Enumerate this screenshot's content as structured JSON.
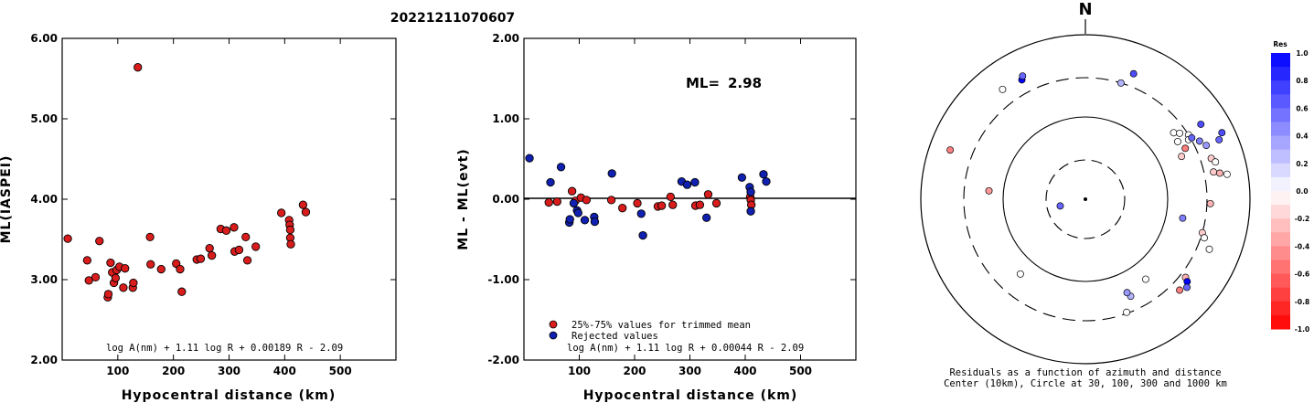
{
  "chart_data": [
    {
      "type": "scatter",
      "title": "20221211070607",
      "xlabel": "Hypocentral distance (km)",
      "ylabel": "ML(IASPEI)",
      "xlim": [
        0,
        600
      ],
      "ylim": [
        2.0,
        6.0
      ],
      "xticks": [
        "100",
        "200",
        "300",
        "400",
        "500"
      ],
      "yticks": [
        "2.00",
        "3.00",
        "4.00",
        "5.00",
        "6.00"
      ],
      "formula": "log A(nm) + 1.11 log R + 0.00189 R - 2.09",
      "marker_color": "#d91c1c",
      "points": [
        [
          10,
          3.51
        ],
        [
          45,
          3.24
        ],
        [
          48,
          2.99
        ],
        [
          60,
          3.03
        ],
        [
          67,
          3.48
        ],
        [
          82,
          2.78
        ],
        [
          83,
          2.82
        ],
        [
          87,
          3.21
        ],
        [
          90,
          3.09
        ],
        [
          93,
          2.96
        ],
        [
          96,
          3.02
        ],
        [
          98,
          3.12
        ],
        [
          103,
          3.16
        ],
        [
          110,
          2.9
        ],
        [
          113,
          3.14
        ],
        [
          127,
          2.9
        ],
        [
          128,
          2.96
        ],
        [
          136,
          5.64
        ],
        [
          158,
          3.53
        ],
        [
          159,
          3.19
        ],
        [
          178,
          3.13
        ],
        [
          205,
          3.2
        ],
        [
          212,
          3.13
        ],
        [
          215,
          2.85
        ],
        [
          242,
          3.25
        ],
        [
          249,
          3.26
        ],
        [
          265,
          3.39
        ],
        [
          269,
          3.3
        ],
        [
          285,
          3.63
        ],
        [
          295,
          3.61
        ],
        [
          309,
          3.65
        ],
        [
          310,
          3.35
        ],
        [
          318,
          3.37
        ],
        [
          330,
          3.53
        ],
        [
          333,
          3.24
        ],
        [
          348,
          3.41
        ],
        [
          394,
          3.83
        ],
        [
          408,
          3.74
        ],
        [
          409,
          3.68
        ],
        [
          410,
          3.62
        ],
        [
          410,
          3.52
        ],
        [
          411,
          3.44
        ],
        [
          433,
          3.93
        ],
        [
          438,
          3.84
        ]
      ]
    },
    {
      "type": "scatter",
      "xlabel": "Hypocentral distance (km)",
      "ylabel": "ML - ML(evt)",
      "xlim": [
        0,
        600
      ],
      "ylim": [
        -2.0,
        2.0
      ],
      "xticks": [
        "100",
        "200",
        "300",
        "400",
        "500"
      ],
      "yticks": [
        "-2.00",
        "-1.00",
        "0.00",
        "1.00",
        "2.00"
      ],
      "ml_label": "ML=",
      "ml_value": "2.98",
      "legend": [
        "25%-75% values for trimmed mean",
        "Rejected values"
      ],
      "formula": "log A(nm) + 1.11 log R + 0.00044 R - 2.09",
      "series": [
        {
          "name": "25%-75% values for trimmed mean",
          "color": "#d91c1c",
          "points": [
            [
              45,
              -0.04
            ],
            [
              60,
              -0.03
            ],
            [
              87,
              0.1
            ],
            [
              93,
              -0.02
            ],
            [
              103,
              0.02
            ],
            [
              113,
              -0.01
            ],
            [
              158,
              -0.01
            ],
            [
              178,
              -0.11
            ],
            [
              205,
              -0.05
            ],
            [
              242,
              -0.09
            ],
            [
              249,
              -0.08
            ],
            [
              265,
              0.03
            ],
            [
              269,
              -0.07
            ],
            [
              310,
              -0.08
            ],
            [
              318,
              -0.07
            ],
            [
              333,
              0.06
            ],
            [
              348,
              -0.05
            ],
            [
              409,
              0.03
            ],
            [
              410,
              -0.01
            ],
            [
              411,
              -0.07
            ]
          ]
        },
        {
          "name": "Rejected values",
          "color": "#1020b0",
          "points": [
            [
              10,
              0.51
            ],
            [
              48,
              0.21
            ],
            [
              67,
              0.4
            ],
            [
              82,
              -0.29
            ],
            [
              83,
              -0.25
            ],
            [
              90,
              -0.05
            ],
            [
              96,
              -0.14
            ],
            [
              98,
              -0.17
            ],
            [
              110,
              -0.26
            ],
            [
              127,
              -0.22
            ],
            [
              128,
              -0.28
            ],
            [
              159,
              0.32
            ],
            [
              212,
              -0.18
            ],
            [
              215,
              -0.45
            ],
            [
              285,
              0.22
            ],
            [
              295,
              0.18
            ],
            [
              309,
              0.21
            ],
            [
              330,
              -0.23
            ],
            [
              394,
              0.27
            ],
            [
              408,
              0.15
            ],
            [
              410,
              0.09
            ],
            [
              410,
              -0.15
            ],
            [
              433,
              0.31
            ],
            [
              438,
              0.22
            ]
          ]
        }
      ]
    },
    {
      "type": "scatter",
      "subtype": "polar residual map",
      "north_label": "N",
      "caption_line1": "Residuals as a function of azimuth and distance",
      "caption_line2": "Center (10km), Circle at 30, 100, 300 and 1000 km",
      "colorbar_title": "Res",
      "colorbar_ticks": [
        "1.0",
        "0.8",
        "0.6",
        "0.4",
        "0.2",
        "0.0",
        "-0.2",
        "-0.4",
        "-0.6",
        "-0.8",
        "-1.0"
      ],
      "colorbar_range": [
        -1.0,
        1.0
      ],
      "stations": [
        {
          "az": 255,
          "dist": 15,
          "res": 0.6
        },
        {
          "az": 290,
          "dist": 560,
          "res": -0.5
        },
        {
          "az": 275,
          "dist": 150,
          "res": -0.4
        },
        {
          "az": 323,
          "dist": 470,
          "res": 0.0
        },
        {
          "az": 332,
          "dist": 440,
          "res": 1.0
        },
        {
          "az": 333,
          "dist": 480,
          "res": 0.6
        },
        {
          "az": 17,
          "dist": 300,
          "res": 0.3
        },
        {
          "az": 21,
          "dist": 430,
          "res": 0.7
        },
        {
          "az": 58,
          "dist": 300,
          "res": 0.0
        },
        {
          "az": 60,
          "dist": 280,
          "res": 0.0
        },
        {
          "az": 53,
          "dist": 220,
          "res": 0.0
        },
        {
          "az": 55,
          "dist": 250,
          "res": 0.0
        },
        {
          "az": 63,
          "dist": 230,
          "res": -0.5
        },
        {
          "az": 58,
          "dist": 210,
          "res": 0.0
        },
        {
          "az": 66,
          "dist": 190,
          "res": -0.2
        },
        {
          "az": 60,
          "dist": 310,
          "res": 0.6
        },
        {
          "az": 63,
          "dist": 360,
          "res": 0.5
        },
        {
          "az": 57,
          "dist": 470,
          "res": 0.7
        },
        {
          "az": 66,
          "dist": 405,
          "res": 0.4
        },
        {
          "az": 72,
          "dist": 405,
          "res": -0.2
        },
        {
          "az": 74,
          "dist": 440,
          "res": 0.0
        },
        {
          "az": 66,
          "dist": 600,
          "res": 0.6
        },
        {
          "az": 64,
          "dist": 700,
          "res": 0.7
        },
        {
          "az": 78,
          "dist": 390,
          "res": -0.2
        },
        {
          "az": 79,
          "dist": 460,
          "res": -0.3
        },
        {
          "az": 80,
          "dist": 560,
          "res": 0.0
        },
        {
          "az": 92,
          "dist": 330,
          "res": -0.3
        },
        {
          "az": 101,
          "dist": 160,
          "res": 0.5
        },
        {
          "az": 106,
          "dist": 300,
          "res": -0.2
        },
        {
          "az": 108,
          "dist": 330,
          "res": 0.0
        },
        {
          "az": 112,
          "dist": 420,
          "res": 0.0
        },
        {
          "az": 128,
          "dist": 350,
          "res": -0.3
        },
        {
          "az": 129,
          "dist": 390,
          "res": 1.0
        },
        {
          "az": 131,
          "dist": 430,
          "res": 0.6
        },
        {
          "az": 134,
          "dist": 390,
          "res": -0.5
        },
        {
          "az": 143,
          "dist": 165,
          "res": 0.0
        },
        {
          "az": 155,
          "dist": 200,
          "res": 0.3
        },
        {
          "az": 156,
          "dist": 175,
          "res": 0.4
        },
        {
          "az": 160,
          "dist": 290,
          "res": 0.0
        },
        {
          "az": 221,
          "dist": 160,
          "res": 0.0
        }
      ]
    }
  ]
}
